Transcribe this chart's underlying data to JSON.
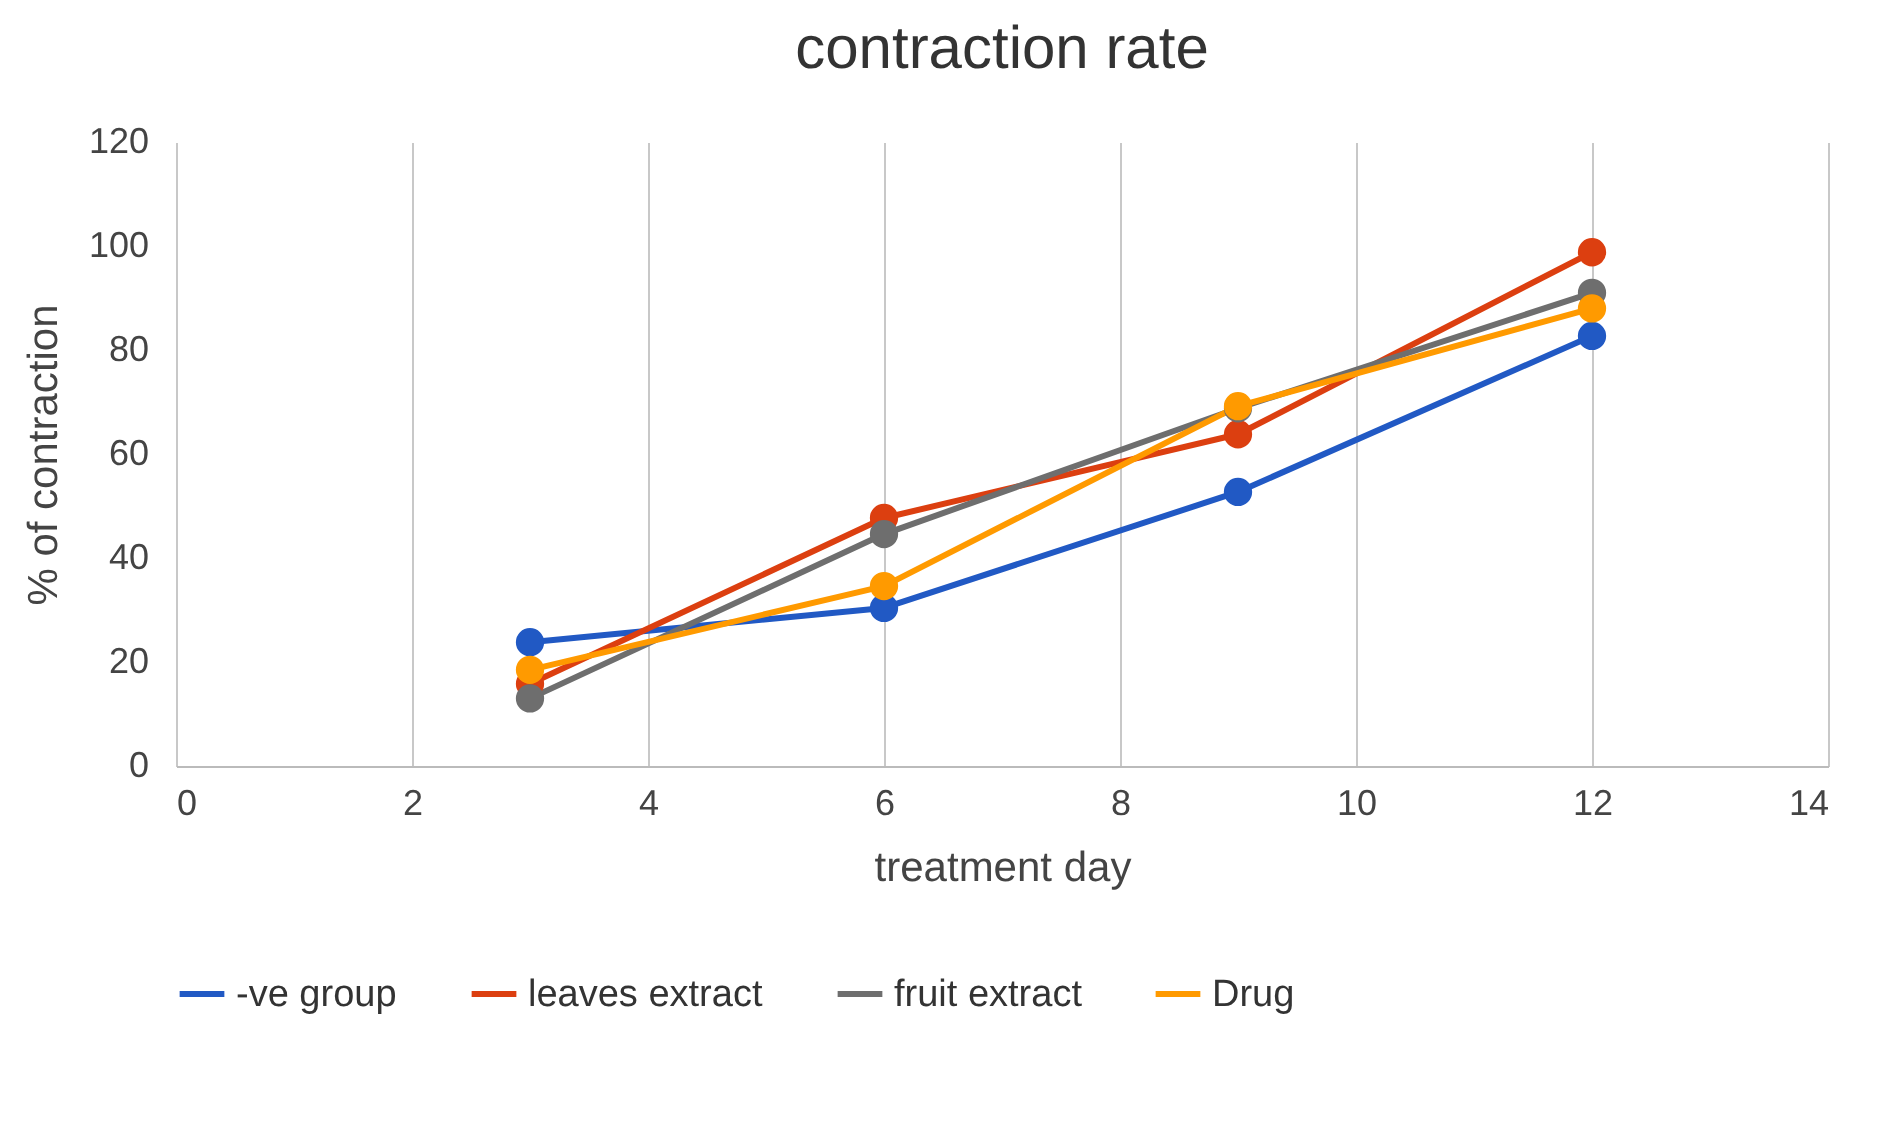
{
  "chart_data": {
    "type": "line",
    "title": "contraction rate",
    "xlabel": "treatment day",
    "ylabel": "% of contraction",
    "x": [
      3,
      6,
      9,
      12
    ],
    "series": [
      {
        "name": "-ve group",
        "color": "#2159c4",
        "values": [
          23.8,
          30.4,
          52.7,
          82.7
        ]
      },
      {
        "name": "leaves extract",
        "color": "#dc3f10",
        "values": [
          15.8,
          47.7,
          63.8,
          98.8
        ]
      },
      {
        "name": "fruit extract",
        "color": "#6e6e6e",
        "values": [
          13,
          44.6,
          68.8,
          91
        ]
      },
      {
        "name": "Drug",
        "color": "#ff9a00",
        "values": [
          18.5,
          34.6,
          69.2,
          88
        ]
      }
    ],
    "xlim": [
      0,
      14
    ],
    "xticks": [
      0,
      2,
      4,
      6,
      8,
      10,
      12,
      14
    ],
    "ylim": [
      0,
      120
    ],
    "yticks": [
      0,
      20,
      40,
      60,
      80,
      100,
      120
    ],
    "grid": "x",
    "legend": "bottom",
    "marker": "circle",
    "line_style": "solid"
  }
}
